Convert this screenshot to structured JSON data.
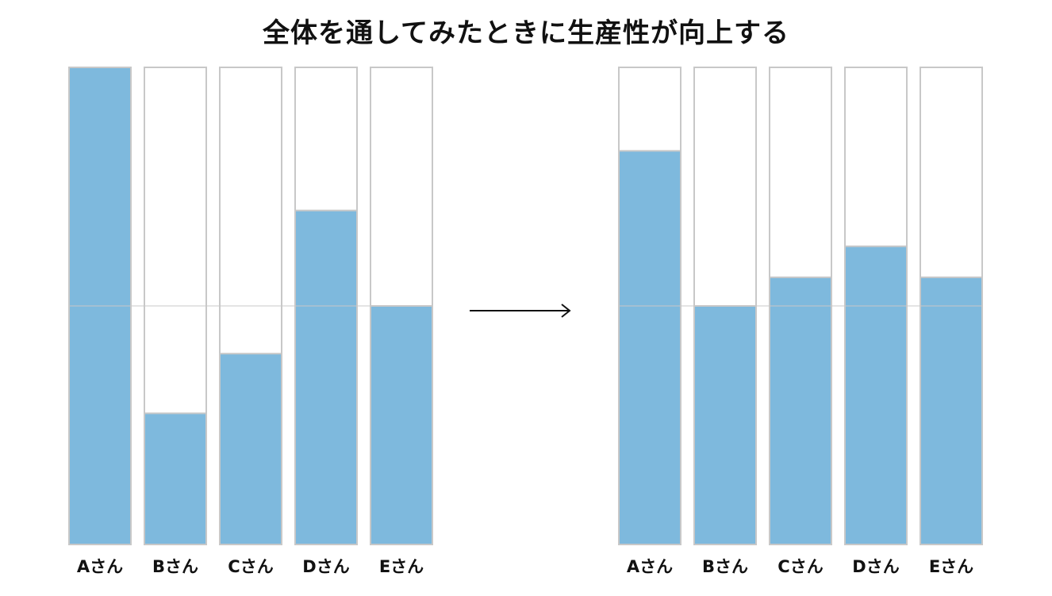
{
  "title": "全体を通してみたときに生産性が向上する",
  "colors": {
    "bar_fill": "#7eb9dd",
    "bar_frame": "#c8c8c8",
    "midline": "#c8c8c8",
    "arrow": "#111111",
    "text": "#111111"
  },
  "chart_data": [
    {
      "type": "bar",
      "panel": "before",
      "categories": [
        "Aさん",
        "Bさん",
        "Cさん",
        "Dさん",
        "Eさん"
      ],
      "values": [
        1.0,
        0.275,
        0.4,
        0.7,
        0.5
      ],
      "ylim": [
        0,
        1
      ],
      "reference_line": 0.5,
      "grid": false
    },
    {
      "type": "bar",
      "panel": "after",
      "categories": [
        "Aさん",
        "Bさん",
        "Cさん",
        "Dさん",
        "Eさん"
      ],
      "values": [
        0.825,
        0.5,
        0.56,
        0.625,
        0.56
      ],
      "ylim": [
        0,
        1
      ],
      "reference_line": 0.5,
      "grid": false
    }
  ]
}
